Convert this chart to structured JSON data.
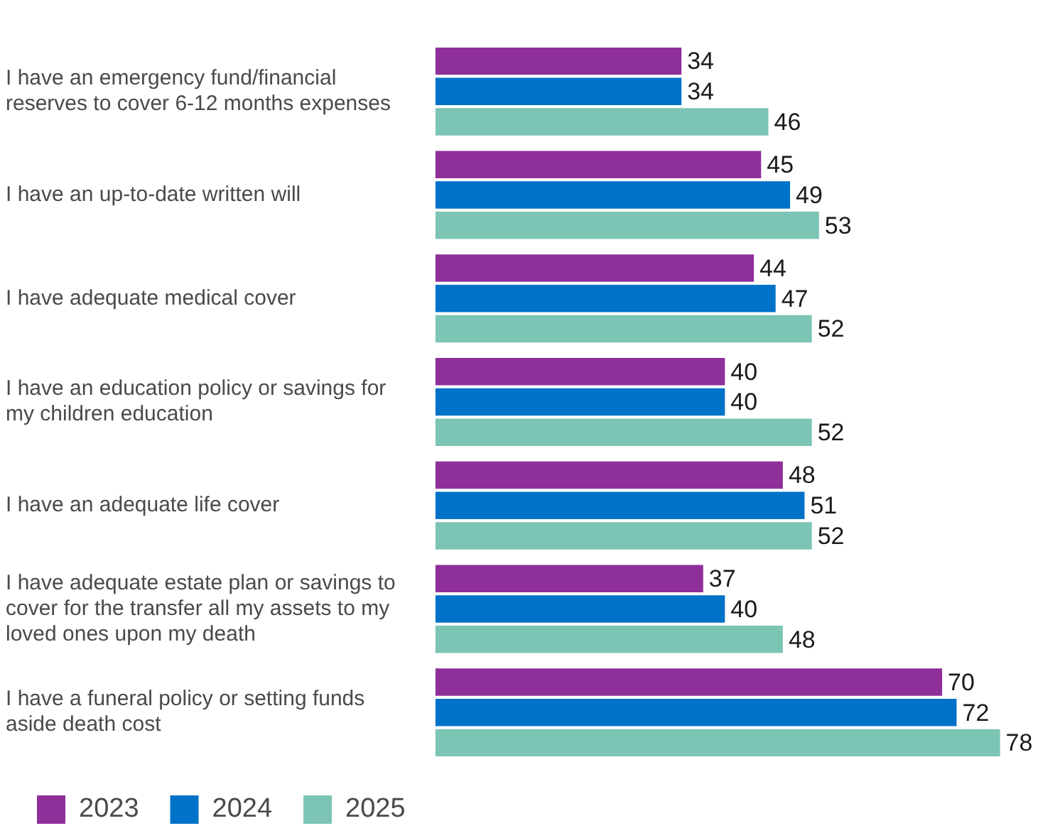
{
  "chart_data": {
    "type": "bar",
    "orientation": "horizontal",
    "categories": [
      "I have an emergency fund/financial reserves to cover 6-12 months expenses",
      "I have an up-to-date written will",
      "I have adequate medical cover",
      "I have an education policy or savings for my children education",
      "I have an adequate life cover",
      "I have adequate estate plan or savings to cover for the transfer all my assets to my loved ones upon my death",
      "I have a funeral policy or setting funds aside death cost"
    ],
    "series": [
      {
        "name": "2023",
        "color": "#8e2f9a",
        "values": [
          34,
          45,
          44,
          40,
          48,
          37,
          70
        ]
      },
      {
        "name": "2024",
        "color": "#0072c8",
        "values": [
          34,
          49,
          47,
          40,
          51,
          40,
          72
        ]
      },
      {
        "name": "2025",
        "color": "#7cc4b4",
        "values": [
          46,
          53,
          52,
          52,
          52,
          48,
          78
        ]
      }
    ],
    "data_labels": true,
    "grid": false,
    "legend": "bottom left",
    "tick_labels": "y"
  }
}
